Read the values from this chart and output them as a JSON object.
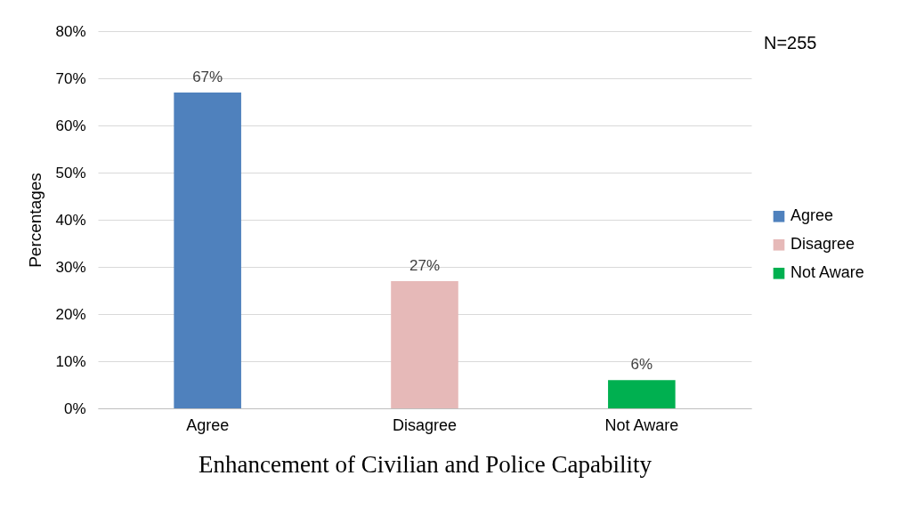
{
  "chart_data": {
    "type": "bar",
    "xlabel": "Enhancement of Civilian and Police Capability",
    "ylabel": "Percentages",
    "categories": [
      "Agree",
      "Disagree",
      "Not Aware"
    ],
    "series": [
      {
        "name": "Agree",
        "color": "#4f81bd",
        "values": [
          67,
          null,
          null
        ],
        "value_labels": [
          "67%",
          null,
          null
        ]
      },
      {
        "name": "Disagree",
        "color": "#e6b9b8",
        "values": [
          null,
          27,
          null
        ],
        "value_labels": [
          null,
          "27%",
          null
        ]
      },
      {
        "name": "Not Aware",
        "color": "#00b050",
        "values": [
          null,
          null,
          6
        ],
        "value_labels": [
          null,
          null,
          "6%"
        ]
      }
    ],
    "ylim": [
      0,
      80
    ],
    "yticks": [
      {
        "value": 0,
        "label": "0%"
      },
      {
        "value": 10,
        "label": "10%"
      },
      {
        "value": 20,
        "label": "20%"
      },
      {
        "value": 30,
        "label": "30%"
      },
      {
        "value": 40,
        "label": "40%"
      },
      {
        "value": 50,
        "label": "50%"
      },
      {
        "value": 60,
        "label": "60%"
      },
      {
        "value": 70,
        "label": "70%"
      },
      {
        "value": 80,
        "label": "80%"
      }
    ],
    "grid": "y",
    "legend": "right",
    "annotations": [
      "N=255"
    ]
  }
}
